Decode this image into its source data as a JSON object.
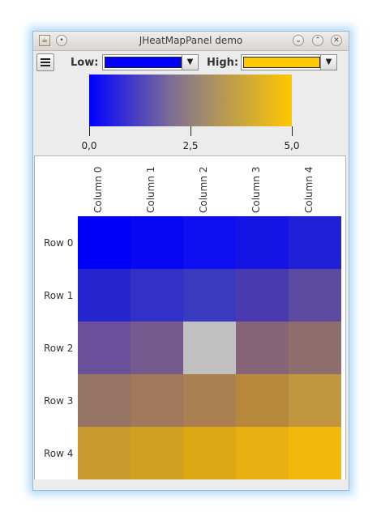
{
  "window": {
    "title": "JHeatMapPanel demo"
  },
  "icons": {
    "app": "java-icon",
    "pin": "pin-icon",
    "minimize": "minimize-icon",
    "maximize": "maximize-icon",
    "close": "close-icon",
    "menu": "hamburger-menu-icon"
  },
  "toolbar": {
    "low_label": "Low:",
    "low_color": "#0000ff",
    "high_label": "High:",
    "high_color": "#ffc800"
  },
  "scale": {
    "ticks": [
      {
        "value": 0.0,
        "label": "0,0"
      },
      {
        "value": 2.5,
        "label": "2,5"
      },
      {
        "value": 5.0,
        "label": "5,0"
      }
    ],
    "min": 0.0,
    "max": 5.0
  },
  "heatmap": {
    "columns": [
      "Column 0",
      "Column 1",
      "Column 2",
      "Column 3",
      "Column 4"
    ],
    "rows": [
      "Row 0",
      "Row 1",
      "Row 2",
      "Row 3",
      "Row 4"
    ],
    "cell_colors": [
      [
        "#0000fa",
        "#0707f3",
        "#0e0ef0",
        "#1414e4",
        "#2020d8"
      ],
      [
        "#2626d0",
        "#3131c7",
        "#3a3abf",
        "#4a3ab2",
        "#5c4aa0"
      ],
      [
        "#6a4f9a",
        "#765a8e",
        "#c0c0c0",
        "#876578",
        "#8e6e6e"
      ],
      [
        "#967464",
        "#a0785c",
        "#aa8052",
        "#b8883c",
        "#c29640"
      ],
      [
        "#c89a30",
        "#d0a020",
        "#dca814",
        "#e8b010",
        "#f2b80c"
      ]
    ]
  }
}
